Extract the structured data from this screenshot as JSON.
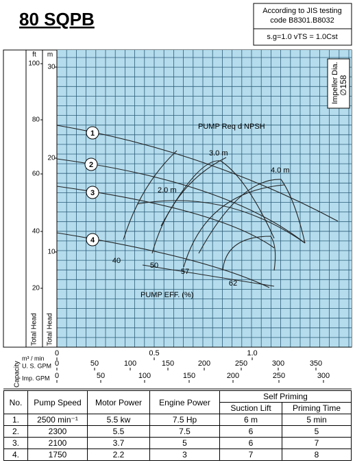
{
  "header": {
    "title": "80 SQPB",
    "standard": [
      "According to JIS testing",
      "code B8301.B8032"
    ],
    "condition": "s.g=1.0 vTS = 1.0Cst"
  },
  "chart": {
    "impeller": [
      "Impeller Dia.",
      "∅158"
    ],
    "head_axis": {
      "ft_unit": "ft",
      "m_unit": "m",
      "ft_ticks": [
        "100",
        "80",
        "60",
        "40",
        "20"
      ],
      "m_ticks": [
        "30",
        "20",
        "10"
      ],
      "label": "Total Head"
    },
    "curve_labels": [
      "1",
      "2",
      "3",
      "4"
    ],
    "npsh_title": "PUMP Req d NPSH",
    "npsh_labels": [
      "2.0 m",
      "3.0 m",
      "4.0 m"
    ],
    "eff_title": "PUMP EFF. (%)",
    "eff_labels": [
      "40",
      "50",
      "57",
      "62"
    ]
  },
  "capacity": {
    "label": "Capacity",
    "rows": [
      {
        "unit": "m³ / min",
        "ticks": [
          "0",
          "0.5",
          "1.0"
        ]
      },
      {
        "unit": "U. S. GPM",
        "ticks": [
          "0",
          "50",
          "100",
          "150",
          "200",
          "250",
          "300",
          "350"
        ]
      },
      {
        "unit": "Imp. GPM",
        "ticks": [
          "0",
          "50",
          "100",
          "150",
          "200",
          "250",
          "300"
        ]
      }
    ]
  },
  "table": {
    "headers": [
      "No.",
      "Pump Speed",
      "Motor Power",
      "Engine Power",
      "Self Priming"
    ],
    "subheaders": [
      "Suction Lift",
      "Priming Time"
    ],
    "rows": [
      [
        "1.",
        "2500 min⁻¹",
        "5.5 kw",
        "7.5 Hp",
        "6 m",
        "5 min"
      ],
      [
        "2.",
        "2300",
        "5.5",
        "7.5",
        "6",
        "5"
      ],
      [
        "3.",
        "2100",
        "3.7",
        "5",
        "6",
        "7"
      ],
      [
        "4.",
        "1750",
        "2.2",
        "3",
        "7",
        "8"
      ]
    ]
  }
}
